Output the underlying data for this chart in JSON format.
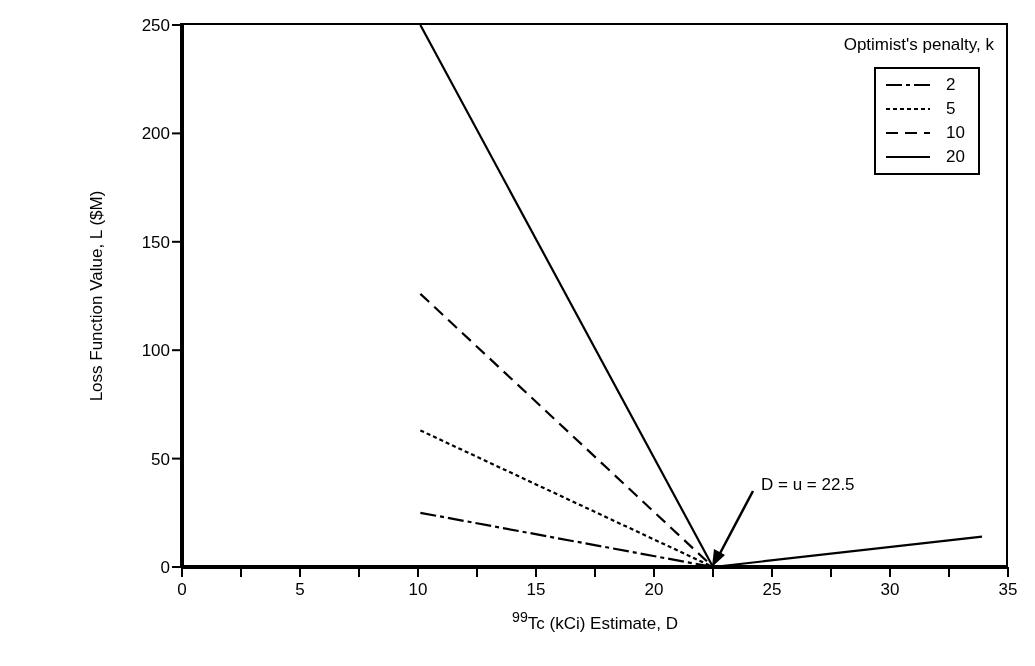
{
  "chart_data": {
    "type": "line",
    "xlabel": "$^{99}$Tc (kCi) Estimate, D",
    "ylabel": "Loss Function Value, L ($M)",
    "legend_title": "Optimist's penalty, k",
    "legend": "top right",
    "xlim": [
      0,
      35
    ],
    "xticks": [
      0,
      {
        "value": 2.5,
        "label": null
      },
      5,
      {
        "value": 7.5,
        "label": null
      },
      10,
      {
        "value": 12.5,
        "label": null
      },
      15,
      {
        "value": 17.5,
        "label": null
      },
      20,
      {
        "value": 22.5,
        "label": null
      },
      25,
      {
        "value": 27.5,
        "label": null
      },
      30,
      {
        "value": 32.5,
        "label": null
      },
      35
    ],
    "ylim": [
      0,
      250
    ],
    "yticks": [
      0,
      50,
      100,
      150,
      200,
      250
    ],
    "series": [
      {
        "name": "2",
        "color": "#000000",
        "line_style": "dashdot",
        "x": [
          10.1,
          22.5
        ],
        "values": [
          25,
          0
        ]
      },
      {
        "name": "5",
        "color": "#000000",
        "line_style": "dotted",
        "x": [
          10.1,
          22.5
        ],
        "values": [
          63,
          0
        ]
      },
      {
        "name": "10",
        "color": "#000000",
        "line_style": "dashed",
        "x": [
          10.1,
          22.5
        ],
        "values": [
          126,
          0
        ]
      },
      {
        "name": "20",
        "color": "#000000",
        "line_style": "solid",
        "x": [
          10.1,
          22.5
        ],
        "values": [
          250,
          0
        ]
      },
      {
        "color": "#000000",
        "line_style": "solid",
        "x": [
          22.5,
          33.9
        ],
        "values": [
          0,
          14
        ]
      }
    ],
    "annotations": [
      {
        "text": "D = u = 22.5",
        "x": 22.5,
        "y": 0
      }
    ]
  }
}
